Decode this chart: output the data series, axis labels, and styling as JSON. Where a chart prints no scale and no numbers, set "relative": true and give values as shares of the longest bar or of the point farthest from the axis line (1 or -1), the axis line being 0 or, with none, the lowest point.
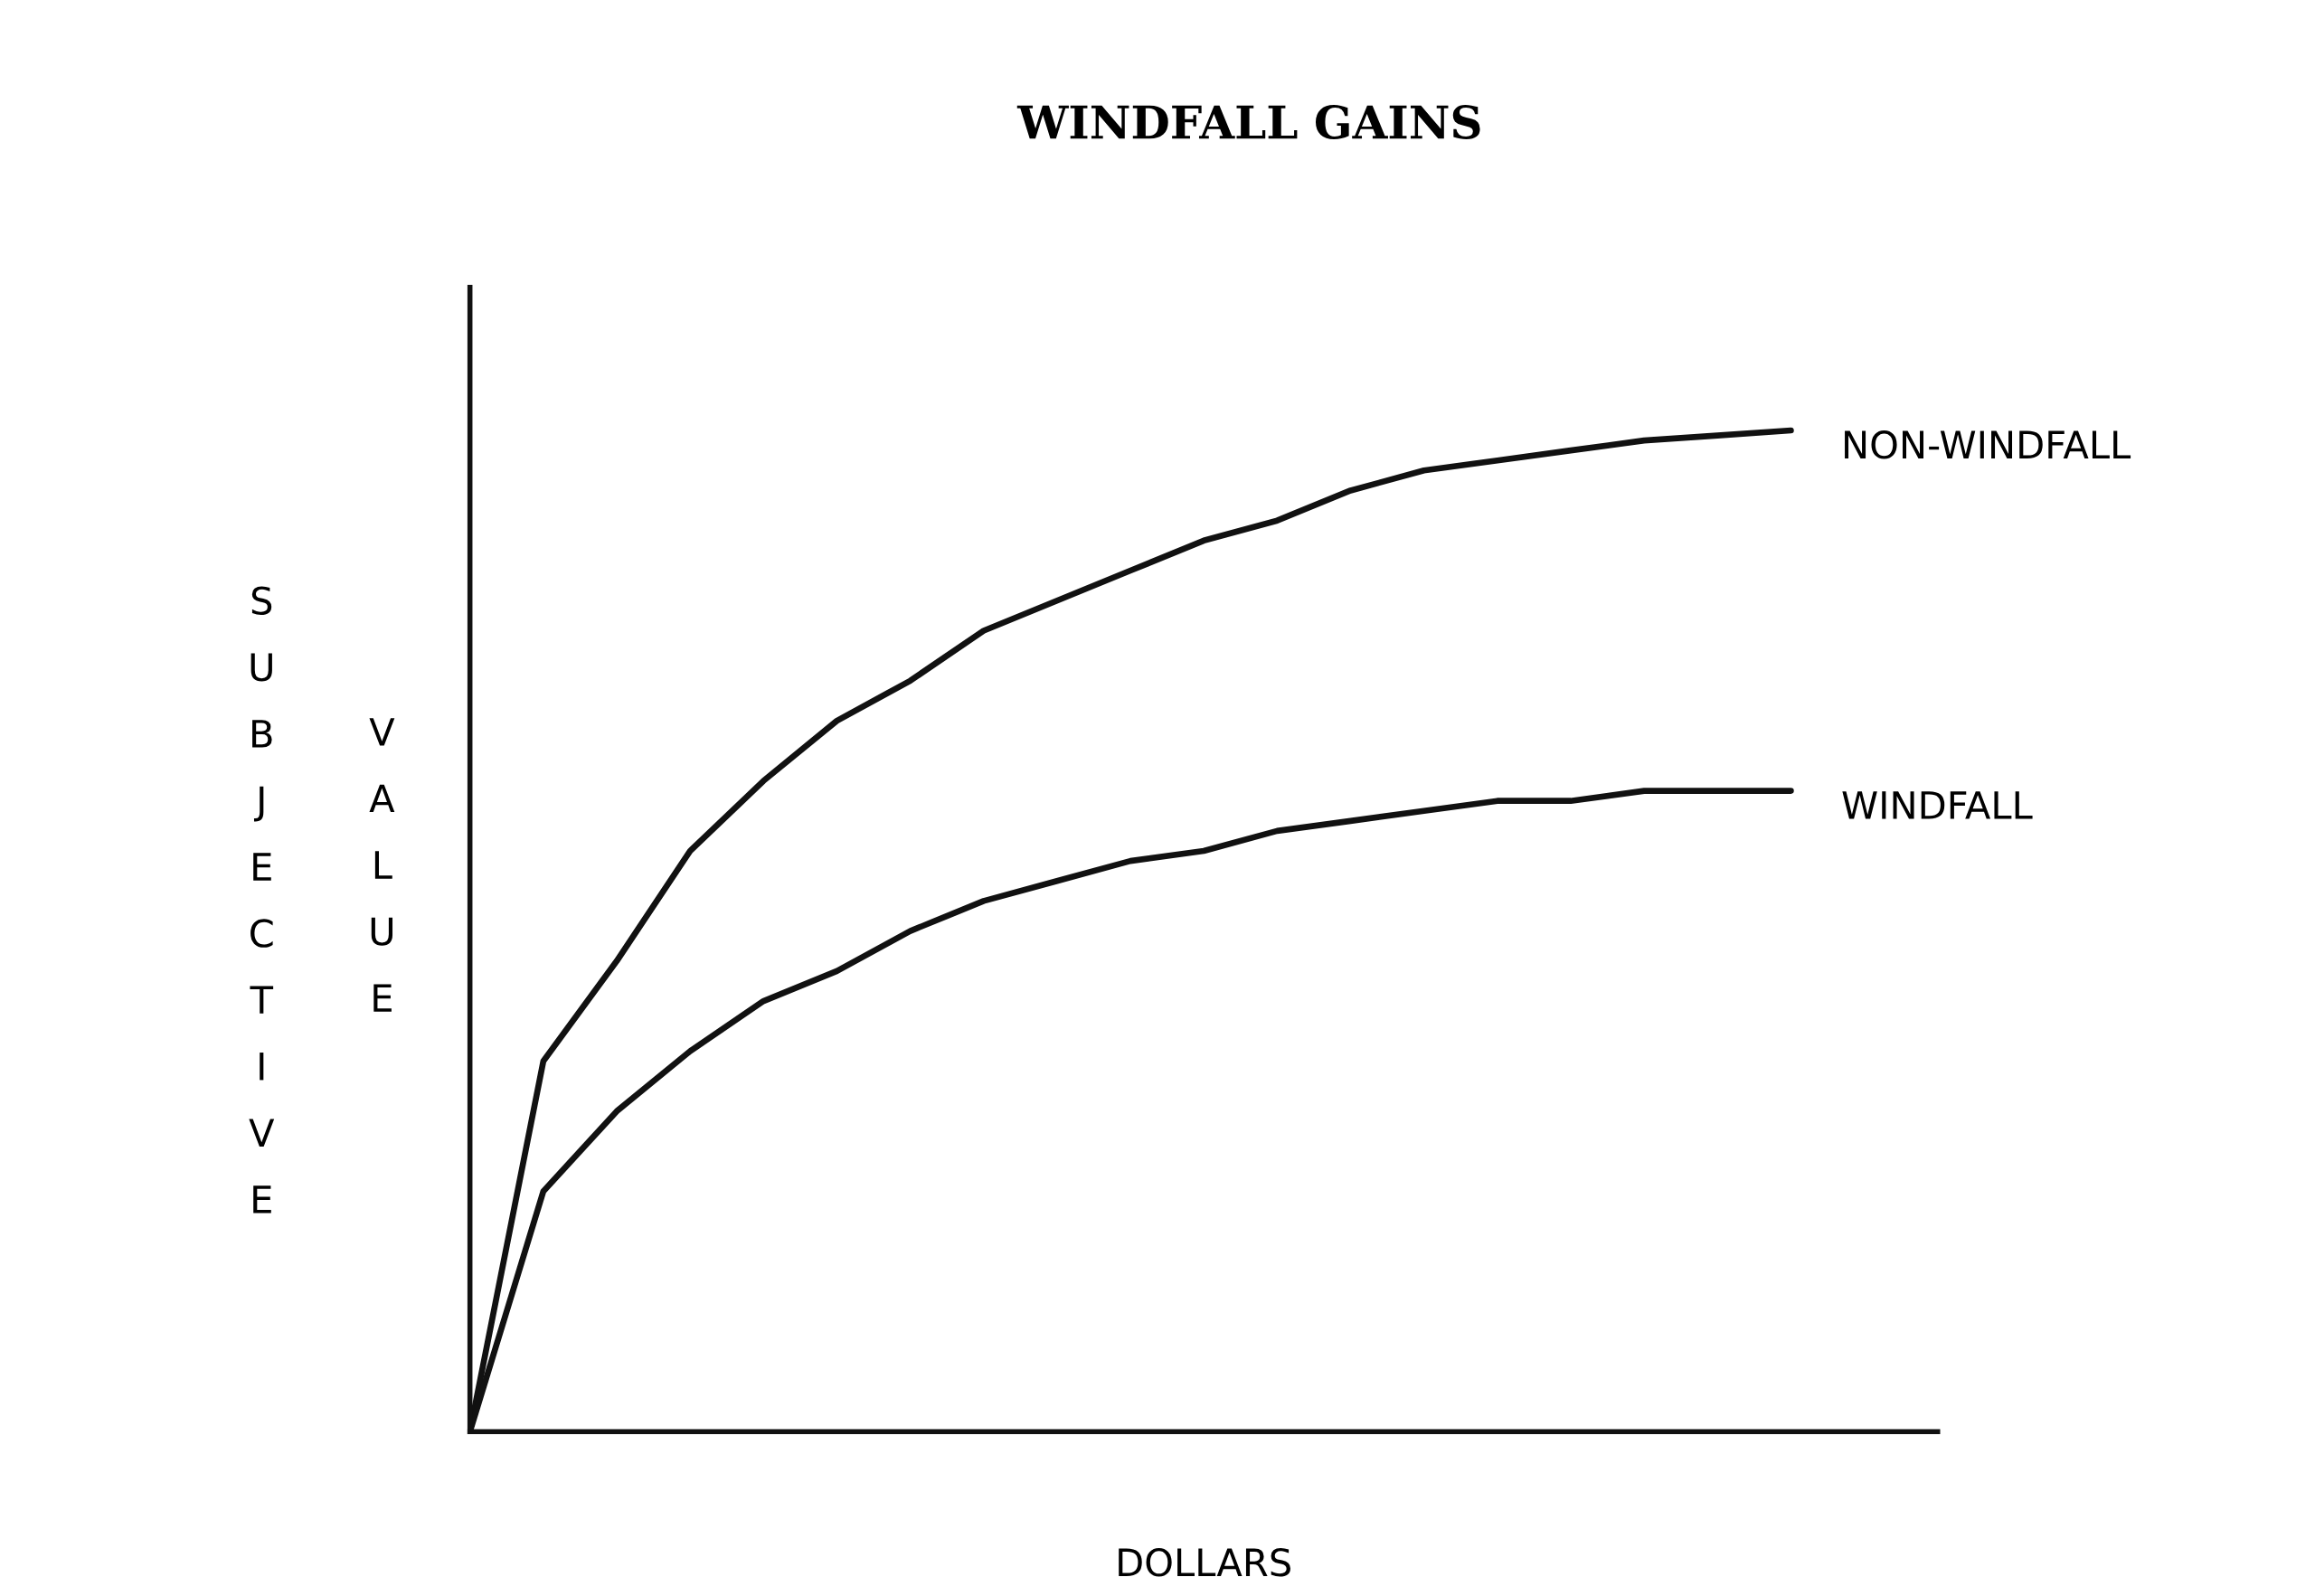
{
  "chart_data": {
    "type": "line",
    "title": "WINDFALL GAINS",
    "xlabel": "DOLLARS",
    "ylabel": "SUBJECTIVE VALUE",
    "relative": true,
    "legend": false,
    "grid": false,
    "marker": "none",
    "line_style": "solid",
    "categories": [
      null,
      null,
      null,
      null,
      null,
      null,
      null,
      null,
      null,
      null,
      null,
      null,
      null,
      null,
      null,
      null,
      null,
      null,
      null,
      null,
      null
    ],
    "series": [
      {
        "name": "NON-WINDFALL",
        "color": "#111111",
        "values": [
          0,
          0.37,
          0.47,
          0.58,
          0.65,
          0.71,
          0.75,
          0.8,
          0.83,
          0.86,
          0.89,
          0.91,
          0.94,
          0.96,
          0.97,
          0.98,
          0.99,
          0.995,
          1.0,
          null,
          null
        ]
      },
      {
        "name": "WINDFALL",
        "color": "#111111",
        "values": [
          0,
          0.24,
          0.32,
          0.38,
          0.43,
          0.46,
          0.5,
          0.53,
          0.55,
          0.57,
          0.58,
          0.6,
          0.61,
          0.62,
          0.63,
          0.63,
          0.64,
          0.64,
          0.64,
          null,
          null
        ]
      }
    ]
  }
}
